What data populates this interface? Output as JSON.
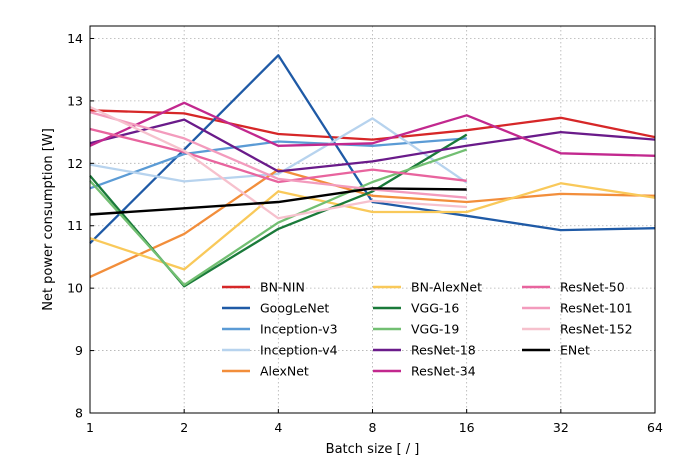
{
  "chart_data": {
    "type": "line",
    "xlabel": "Batch size [ / ]",
    "ylabel": "Net power consumption [W]",
    "x_scale": "log2",
    "x": [
      1,
      2,
      4,
      8,
      16,
      32,
      64
    ],
    "xtick_labels": [
      "1",
      "2",
      "4",
      "8",
      "16",
      "32",
      "64"
    ],
    "ylim": [
      8,
      14.2
    ],
    "yticks": [
      8,
      9,
      10,
      11,
      12,
      13,
      14
    ],
    "grid": true,
    "legend_position": "lower-right",
    "legend_columns": 3,
    "series": [
      {
        "name": "BN-NIN",
        "color": "#d62728",
        "x": [
          1,
          2,
          4,
          8,
          16,
          32,
          64
        ],
        "values": [
          12.85,
          12.8,
          12.47,
          12.38,
          12.53,
          12.73,
          12.42
        ]
      },
      {
        "name": "GoogLeNet",
        "color": "#1f5aa6",
        "x": [
          1,
          2,
          4,
          8,
          16,
          32,
          64
        ],
        "values": [
          10.72,
          12.22,
          13.73,
          11.38,
          11.16,
          10.93,
          10.96
        ]
      },
      {
        "name": "Inception-v3",
        "color": "#5b9bd5",
        "x": [
          1,
          2,
          4,
          8,
          16
        ],
        "values": [
          11.6,
          12.15,
          12.35,
          12.28,
          12.4
        ]
      },
      {
        "name": "Inception-v4",
        "color": "#b7d3ee",
        "x": [
          1,
          2,
          4,
          8,
          16
        ],
        "values": [
          11.98,
          11.71,
          11.83,
          12.72,
          11.69
        ]
      },
      {
        "name": "AlexNet",
        "color": "#f28e3b",
        "x": [
          1,
          2,
          4,
          8,
          16,
          32,
          64
        ],
        "values": [
          10.18,
          10.87,
          11.9,
          11.48,
          11.38,
          11.51,
          11.48
        ]
      },
      {
        "name": "BN-AlexNet",
        "color": "#f9c95a",
        "x": [
          1,
          2,
          4,
          8,
          16,
          32,
          64
        ],
        "values": [
          10.8,
          10.3,
          11.55,
          11.22,
          11.22,
          11.68,
          11.45
        ]
      },
      {
        "name": "VGG-16",
        "color": "#1a7a3a",
        "x": [
          1,
          2,
          4,
          8,
          16
        ],
        "values": [
          11.8,
          10.03,
          10.95,
          11.55,
          12.46
        ]
      },
      {
        "name": "VGG-19",
        "color": "#72bf72",
        "x": [
          1,
          2,
          4,
          8,
          16
        ],
        "values": [
          11.72,
          10.05,
          11.05,
          11.7,
          12.22
        ]
      },
      {
        "name": "ResNet-18",
        "color": "#6a1b8a",
        "x": [
          1,
          2,
          4,
          8,
          16,
          32,
          64
        ],
        "values": [
          12.32,
          12.7,
          11.87,
          12.03,
          12.28,
          12.5,
          12.38
        ]
      },
      {
        "name": "ResNet-34",
        "color": "#c2288e",
        "x": [
          1,
          2,
          4,
          8,
          16,
          32,
          64
        ],
        "values": [
          12.28,
          12.97,
          12.28,
          12.32,
          12.77,
          12.16,
          12.12
        ]
      },
      {
        "name": "ResNet-50",
        "color": "#e8649e",
        "x": [
          1,
          2,
          4,
          8,
          16
        ],
        "values": [
          12.55,
          12.18,
          11.7,
          11.9,
          11.72
        ]
      },
      {
        "name": "ResNet-101",
        "color": "#f39bbd",
        "x": [
          1,
          2,
          4,
          8,
          16
        ],
        "values": [
          12.82,
          12.4,
          11.75,
          11.58,
          11.45
        ]
      },
      {
        "name": "ResNet-152",
        "color": "#f6c1cd",
        "x": [
          1,
          2,
          4,
          8,
          16
        ],
        "values": [
          12.9,
          12.2,
          11.12,
          11.4,
          11.3
        ]
      },
      {
        "name": "ENet",
        "color": "#000000",
        "x": [
          1,
          2,
          4,
          8,
          16
        ],
        "values": [
          11.18,
          11.28,
          11.38,
          11.6,
          11.58
        ]
      }
    ]
  }
}
